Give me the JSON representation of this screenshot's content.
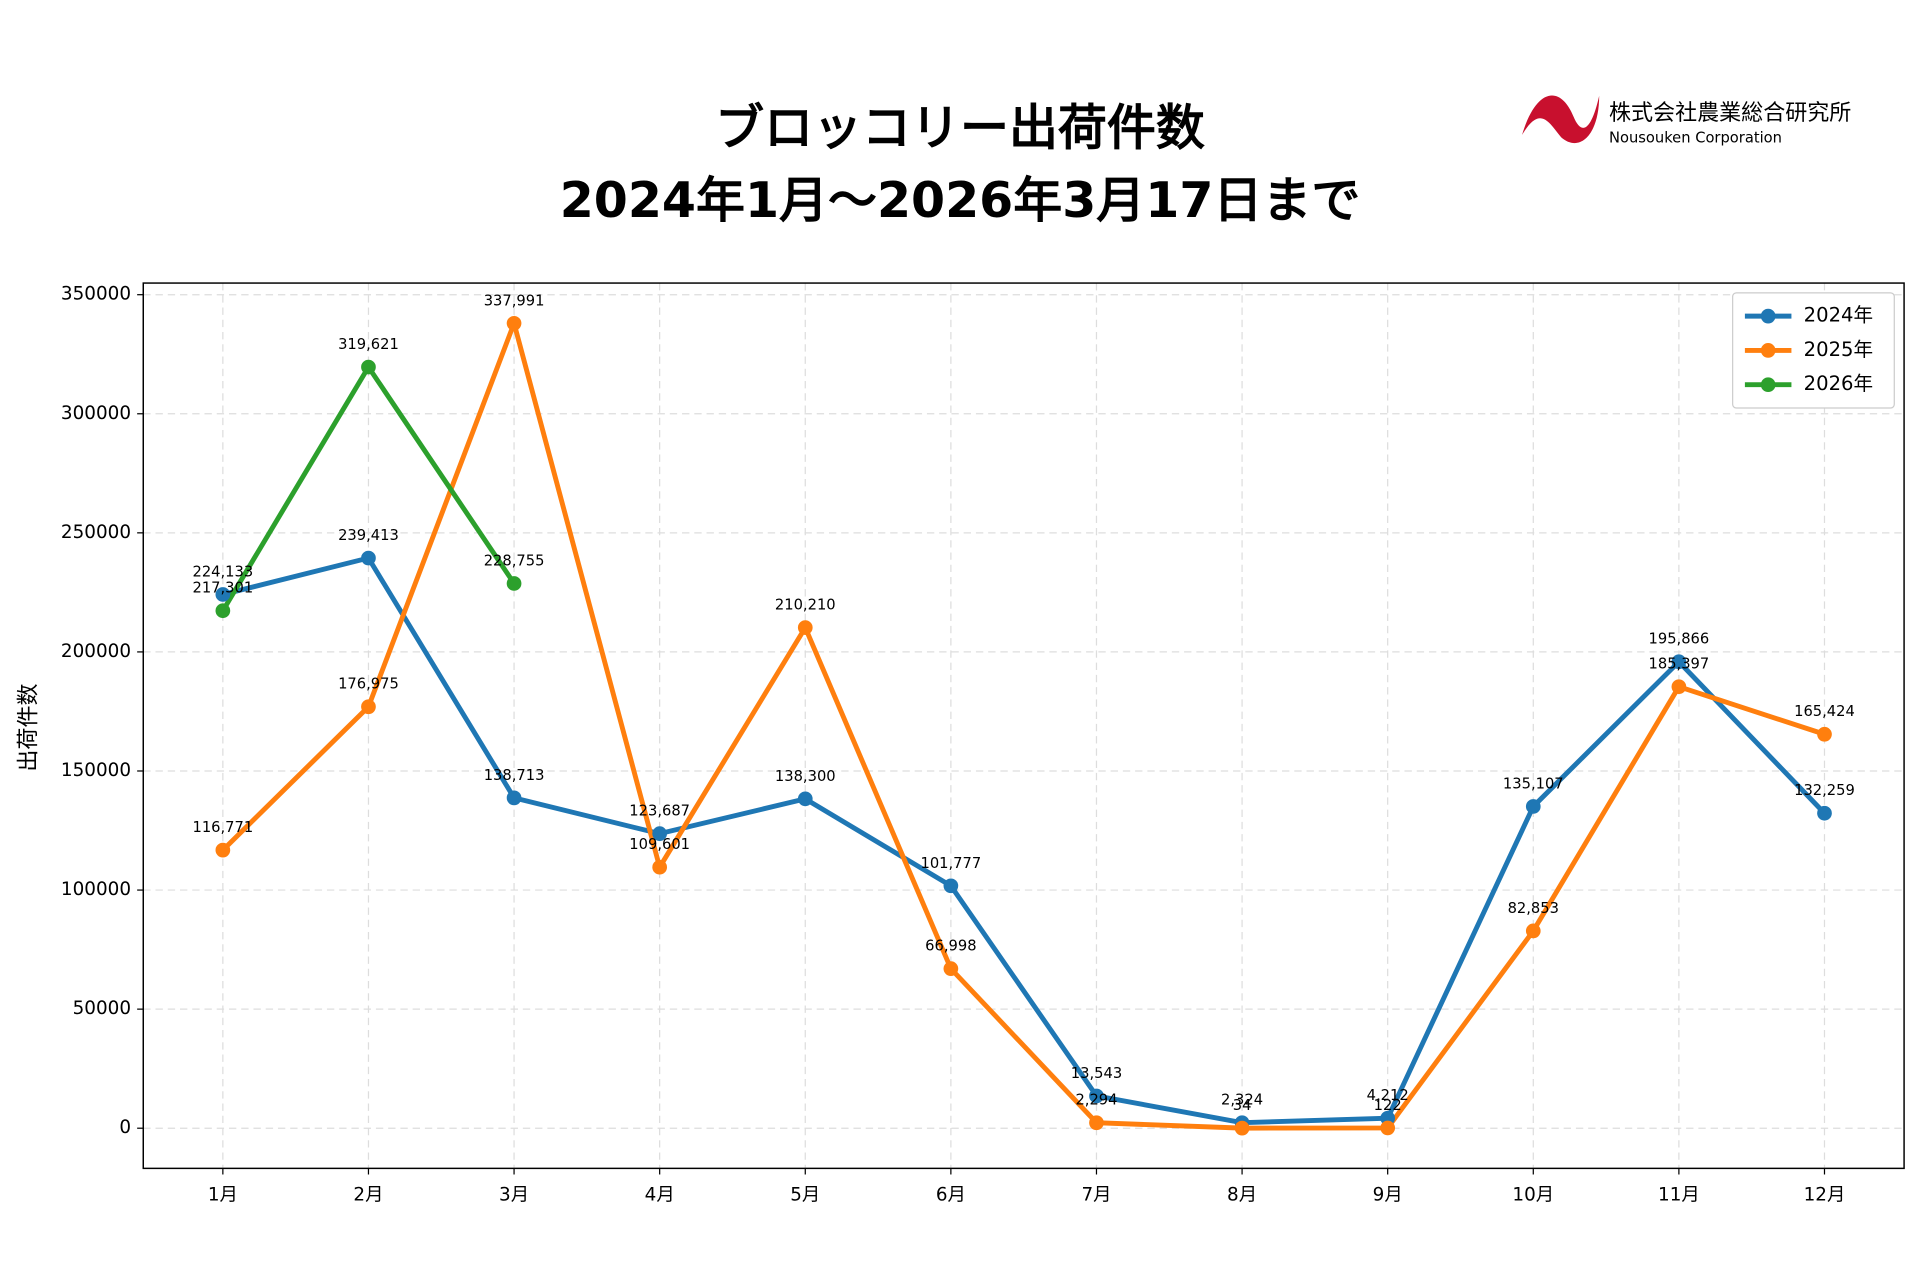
{
  "logo": {
    "company": "株式会社農業総合研究所",
    "company_en": "Nousouken Corporation"
  },
  "chart_data": {
    "type": "line",
    "title": "ブロッコリー出荷件数",
    "subtitle": "2024年1月～2026年3月17日まで",
    "y_label": "出荷件数",
    "categories": [
      "1月",
      "2月",
      "3月",
      "4月",
      "5月",
      "6月",
      "7月",
      "8月",
      "9月",
      "10月",
      "11月",
      "12月"
    ],
    "series": [
      {
        "name": "2024年",
        "color": "#1f77b4",
        "values": [
          224133,
          239413,
          138713,
          123687,
          138300,
          101777,
          13543,
          2324,
          4212,
          135107,
          195866,
          132259
        ],
        "value_labels": [
          "224,133",
          "239,413",
          "138,713",
          "123,687",
          "138,300",
          "101,777",
          "13,543",
          "2,324",
          "4,212",
          "135,107",
          "195,866",
          "132,259"
        ]
      },
      {
        "name": "2025年",
        "color": "#ff7f0e",
        "values": [
          116771,
          176975,
          337991,
          109601,
          210210,
          66998,
          2294,
          34,
          122,
          82853,
          185397,
          165424
        ],
        "value_labels": [
          "116,771",
          "176,975",
          "337,991",
          "109,601",
          "210,210",
          "66,998",
          "2,294",
          "34",
          "122",
          "82,853",
          "185,397",
          "165,424"
        ]
      },
      {
        "name": "2026年",
        "color": "#2ca02c",
        "values": [
          217301,
          319621,
          228755,
          null,
          null,
          null,
          null,
          null,
          null,
          null,
          null,
          null
        ],
        "value_labels": [
          "217,301",
          "319,621",
          "228,755",
          null,
          null,
          null,
          null,
          null,
          null,
          null,
          null,
          null
        ]
      }
    ],
    "ylim": [
      -16864,
      354889
    ],
    "yticks": [
      0,
      50000,
      100000,
      150000,
      200000,
      250000,
      300000,
      350000
    ],
    "grid": true,
    "legend": "upper right"
  }
}
